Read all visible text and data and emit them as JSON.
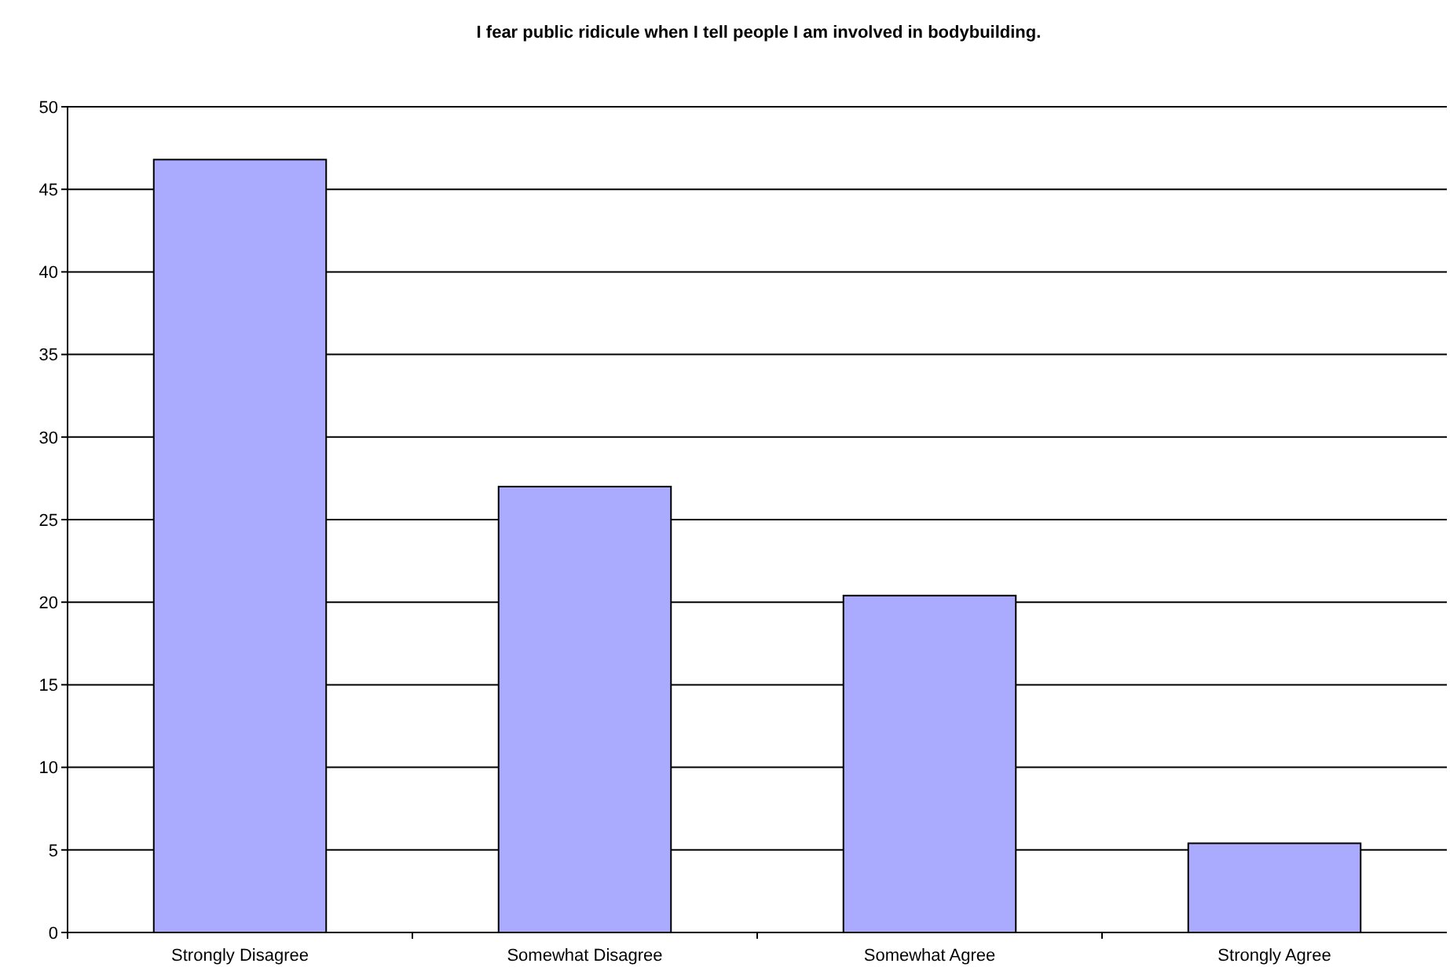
{
  "chart_data": {
    "type": "bar",
    "title": "I fear public ridicule when I tell people I am involved in bodybuilding.",
    "categories": [
      "Strongly Disagree",
      "Somewhat Disagree",
      "Somewhat Agree",
      "Strongly Agree"
    ],
    "values": [
      46.8,
      27,
      20.4,
      5.4
    ],
    "color": "#aaaaff",
    "ylim": [
      0,
      50
    ],
    "yticks": [
      0,
      5,
      10,
      15,
      20,
      25,
      30,
      35,
      40,
      45,
      50
    ],
    "grid": "y"
  }
}
